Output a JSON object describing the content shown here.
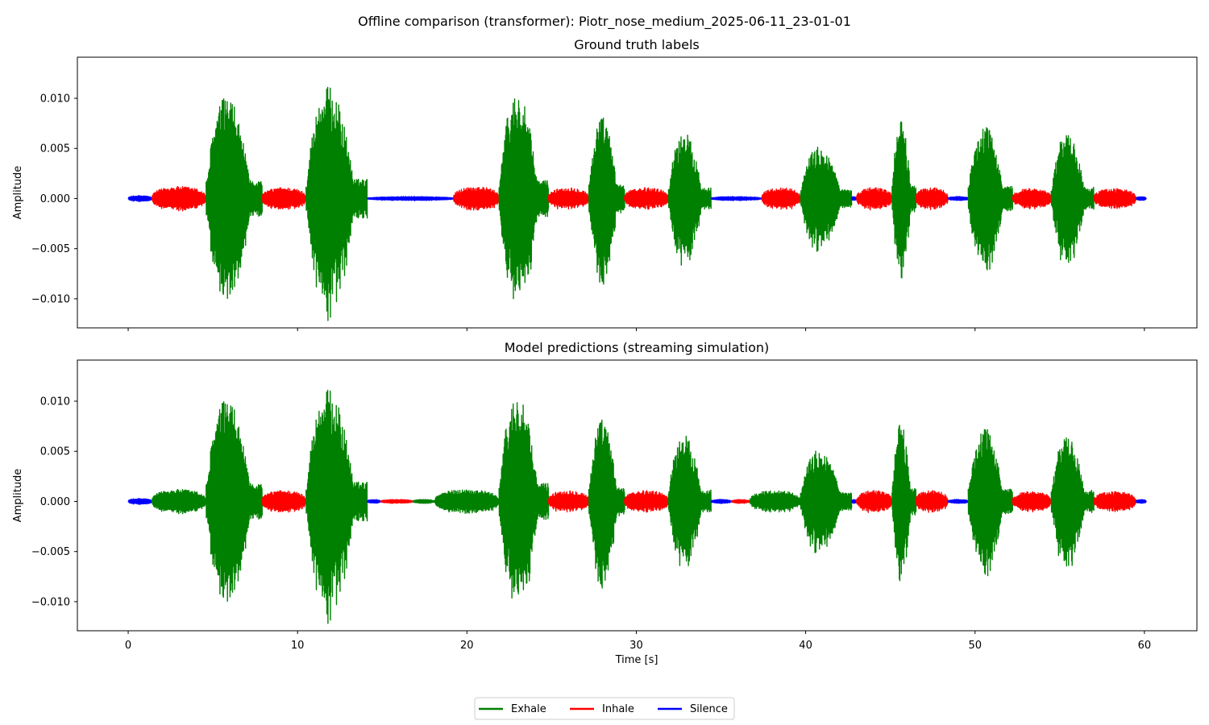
{
  "suptitle": "Offline comparison (transformer): Piotr_nose_medium_2025-06-11_23-01-01",
  "chart_data": {
    "type": "line",
    "x_unit": "Time [s]",
    "xlim": [
      -3.0,
      63.1
    ],
    "ylim": [
      -0.0129,
      0.0141
    ],
    "x_ticks": [
      0,
      10,
      20,
      30,
      40,
      50,
      60
    ],
    "y_ticks": [
      0.01,
      0.005,
      0.0,
      -0.005,
      -0.01
    ],
    "y_tick_labels": [
      "0.010",
      "0.005",
      "0.000",
      "−0.005",
      "−0.010"
    ],
    "x_tick_labels": [
      "0",
      "10",
      "20",
      "30",
      "40",
      "50",
      "60"
    ],
    "legend": {
      "placement": "bottom-center",
      "entries": [
        {
          "label": "Exhale",
          "color": "#008000"
        },
        {
          "label": "Inhale",
          "color": "#ff0000"
        },
        {
          "label": "Silence",
          "color": "#0000ff"
        }
      ]
    },
    "colors": {
      "exhale": "#008000",
      "inhale": "#ff0000",
      "silence": "#0000ff"
    },
    "panels": [
      {
        "title": "Ground truth labels",
        "ylabel": "Amplitude",
        "xlabel": "",
        "show_x_tick_labels": false,
        "segments": [
          {
            "label": "silence",
            "start": 0.0,
            "end": 1.4,
            "amp": 0.0003
          },
          {
            "label": "inhale",
            "start": 1.4,
            "end": 4.6,
            "amp": 0.0012
          },
          {
            "label": "exhale",
            "start": 4.6,
            "end": 7.9,
            "amp": 0.0118
          },
          {
            "label": "inhale",
            "start": 7.9,
            "end": 10.5,
            "amp": 0.0011
          },
          {
            "label": "exhale",
            "start": 10.5,
            "end": 14.1,
            "amp": 0.0129
          },
          {
            "label": "silence",
            "start": 14.1,
            "end": 19.2,
            "amp": 0.0002
          },
          {
            "label": "inhale",
            "start": 19.2,
            "end": 21.9,
            "amp": 0.0012
          },
          {
            "label": "exhale",
            "start": 21.9,
            "end": 24.8,
            "amp": 0.0122
          },
          {
            "label": "inhale",
            "start": 24.8,
            "end": 27.2,
            "amp": 0.0011
          },
          {
            "label": "exhale",
            "start": 27.2,
            "end": 29.3,
            "amp": 0.0095
          },
          {
            "label": "inhale",
            "start": 29.3,
            "end": 31.9,
            "amp": 0.0011
          },
          {
            "label": "exhale",
            "start": 31.9,
            "end": 34.4,
            "amp": 0.0077
          },
          {
            "label": "silence",
            "start": 34.4,
            "end": 37.4,
            "amp": 0.0002
          },
          {
            "label": "inhale",
            "start": 37.4,
            "end": 39.7,
            "amp": 0.0011
          },
          {
            "label": "exhale",
            "start": 39.7,
            "end": 42.7,
            "amp": 0.006
          },
          {
            "label": "silence",
            "start": 42.7,
            "end": 43.0,
            "amp": 0.0002
          },
          {
            "label": "inhale",
            "start": 43.0,
            "end": 45.1,
            "amp": 0.0011
          },
          {
            "label": "exhale",
            "start": 45.1,
            "end": 46.5,
            "amp": 0.009
          },
          {
            "label": "inhale",
            "start": 46.5,
            "end": 48.4,
            "amp": 0.0011
          },
          {
            "label": "silence",
            "start": 48.4,
            "end": 49.6,
            "amp": 0.0002
          },
          {
            "label": "exhale",
            "start": 49.6,
            "end": 52.2,
            "amp": 0.0085
          },
          {
            "label": "inhale",
            "start": 52.2,
            "end": 54.5,
            "amp": 0.001
          },
          {
            "label": "exhale",
            "start": 54.5,
            "end": 57.0,
            "amp": 0.0075
          },
          {
            "label": "inhale",
            "start": 57.0,
            "end": 59.5,
            "amp": 0.001
          },
          {
            "label": "silence",
            "start": 59.5,
            "end": 60.1,
            "amp": 0.0002
          }
        ]
      },
      {
        "title": "Model predictions (streaming simulation)",
        "ylabel": "Amplitude",
        "xlabel": "Time [s]",
        "show_x_tick_labels": true,
        "segments": [
          {
            "label": "silence",
            "start": 0.0,
            "end": 1.4,
            "amp": 0.0003
          },
          {
            "label": "exhale",
            "start": 1.4,
            "end": 4.6,
            "amp": 0.0012
          },
          {
            "label": "exhale",
            "start": 4.6,
            "end": 7.9,
            "amp": 0.0118
          },
          {
            "label": "inhale",
            "start": 7.9,
            "end": 10.5,
            "amp": 0.0011
          },
          {
            "label": "exhale",
            "start": 10.5,
            "end": 14.1,
            "amp": 0.0129
          },
          {
            "label": "silence",
            "start": 14.1,
            "end": 14.9,
            "amp": 0.0002
          },
          {
            "label": "inhale",
            "start": 14.9,
            "end": 16.8,
            "amp": 0.0002
          },
          {
            "label": "exhale",
            "start": 16.8,
            "end": 18.1,
            "amp": 0.0002
          },
          {
            "label": "exhale",
            "start": 18.1,
            "end": 21.9,
            "amp": 0.0012
          },
          {
            "label": "exhale",
            "start": 21.9,
            "end": 24.8,
            "amp": 0.0122
          },
          {
            "label": "inhale",
            "start": 24.8,
            "end": 27.2,
            "amp": 0.0011
          },
          {
            "label": "exhale",
            "start": 27.2,
            "end": 29.3,
            "amp": 0.0095
          },
          {
            "label": "inhale",
            "start": 29.3,
            "end": 31.9,
            "amp": 0.0011
          },
          {
            "label": "exhale",
            "start": 31.9,
            "end": 34.4,
            "amp": 0.0077
          },
          {
            "label": "silence",
            "start": 34.4,
            "end": 35.6,
            "amp": 0.0002
          },
          {
            "label": "inhale",
            "start": 35.6,
            "end": 36.7,
            "amp": 0.0002
          },
          {
            "label": "exhale",
            "start": 36.7,
            "end": 39.7,
            "amp": 0.0011
          },
          {
            "label": "exhale",
            "start": 39.7,
            "end": 42.7,
            "amp": 0.006
          },
          {
            "label": "silence",
            "start": 42.7,
            "end": 43.0,
            "amp": 0.0002
          },
          {
            "label": "inhale",
            "start": 43.0,
            "end": 45.1,
            "amp": 0.0011
          },
          {
            "label": "exhale",
            "start": 45.1,
            "end": 46.5,
            "amp": 0.009
          },
          {
            "label": "inhale",
            "start": 46.5,
            "end": 48.4,
            "amp": 0.0011
          },
          {
            "label": "silence",
            "start": 48.4,
            "end": 49.6,
            "amp": 0.0002
          },
          {
            "label": "exhale",
            "start": 49.6,
            "end": 52.2,
            "amp": 0.0085
          },
          {
            "label": "inhale",
            "start": 52.2,
            "end": 54.5,
            "amp": 0.001
          },
          {
            "label": "exhale",
            "start": 54.5,
            "end": 57.0,
            "amp": 0.0075
          },
          {
            "label": "inhale",
            "start": 57.0,
            "end": 59.5,
            "amp": 0.001
          },
          {
            "label": "silence",
            "start": 59.5,
            "end": 60.1,
            "amp": 0.0002
          }
        ]
      }
    ]
  }
}
